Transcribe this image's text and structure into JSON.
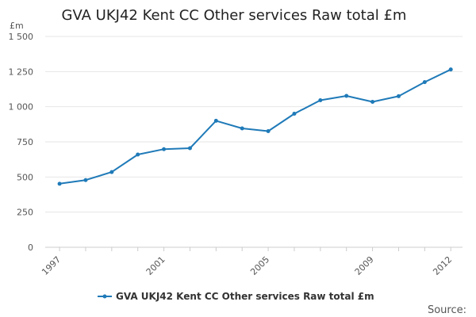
{
  "chart_data": {
    "type": "line",
    "title": "GVA UKJ42 Kent CC Other services Raw total £m",
    "unit_label": "£m",
    "xlabel": "",
    "ylabel": "",
    "x": [
      1997,
      1998,
      1999,
      2000,
      2001,
      2002,
      2003,
      2004,
      2005,
      2006,
      2007,
      2008,
      2009,
      2010,
      2011,
      2012
    ],
    "x_tick_values": [
      1997,
      2001,
      2005,
      2009,
      2012
    ],
    "x_tick_labels": [
      "1997",
      "2001",
      "2005",
      "2009",
      "2012"
    ],
    "ylim": [
      0,
      1500
    ],
    "y_tick_values": [
      0,
      250,
      500,
      750,
      1000,
      1250,
      1500
    ],
    "y_tick_labels": [
      "0",
      "250",
      "500",
      "750",
      "1 000",
      "1 250",
      "1 500"
    ],
    "grid": true,
    "legend_position": "bottom",
    "series": [
      {
        "name": "GVA UKJ42 Kent CC Other services Raw total £m",
        "color": "#1f7ab8",
        "values": [
          452,
          478,
          535,
          660,
          698,
          705,
          900,
          846,
          826,
          950,
          1046,
          1077,
          1035,
          1075,
          1175,
          1265
        ]
      }
    ],
    "source_label": "Source:"
  }
}
